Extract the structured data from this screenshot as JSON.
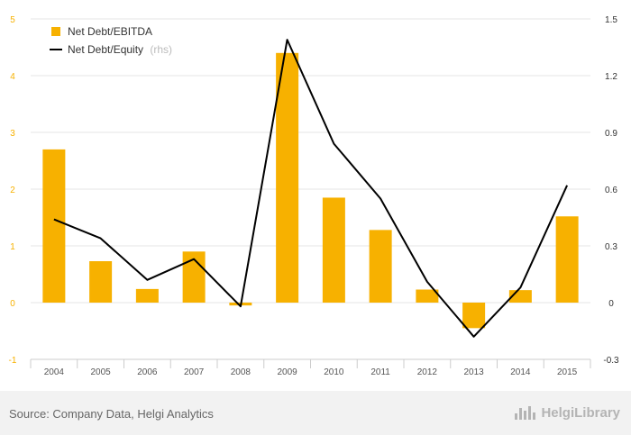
{
  "chart_data": {
    "type": "bar",
    "categories": [
      "2004",
      "2005",
      "2006",
      "2007",
      "2008",
      "2009",
      "2010",
      "2011",
      "2012",
      "2013",
      "2014",
      "2015"
    ],
    "series": [
      {
        "name": "Net Debt/EBITDA",
        "type": "bar",
        "axis": "left",
        "values": [
          2.7,
          0.73,
          0.24,
          0.9,
          -0.05,
          4.4,
          1.85,
          1.28,
          0.23,
          -0.45,
          0.22,
          1.52
        ]
      },
      {
        "name": "Net Debt/Equity",
        "name_suffix": "(rhs)",
        "type": "line",
        "axis": "right",
        "values": [
          0.44,
          0.34,
          0.12,
          0.23,
          -0.02,
          1.39,
          0.84,
          0.55,
          0.11,
          -0.18,
          0.08,
          0.62
        ]
      }
    ],
    "y_left": {
      "ticks": [
        "-1",
        "0",
        "1",
        "2",
        "3",
        "4",
        "5"
      ],
      "min": -1,
      "max": 5,
      "step": 1
    },
    "y_right": {
      "ticks": [
        "-0.3",
        "0",
        "0.3",
        "0.6",
        "0.9",
        "1.2",
        "1.5"
      ],
      "min": -0.3,
      "max": 1.5,
      "step": 0.3
    },
    "grid": true,
    "legend_position": "top-left",
    "colors": {
      "bar": "#f7b100",
      "line": "#000000",
      "left_ticks": "#f7b100",
      "grid": "#e6e6e6"
    }
  },
  "footer": {
    "source": "Source: Company Data, Helgi Analytics",
    "brand": "HelgiLibrary",
    "brand_icon": "helgi-logo-icon"
  }
}
